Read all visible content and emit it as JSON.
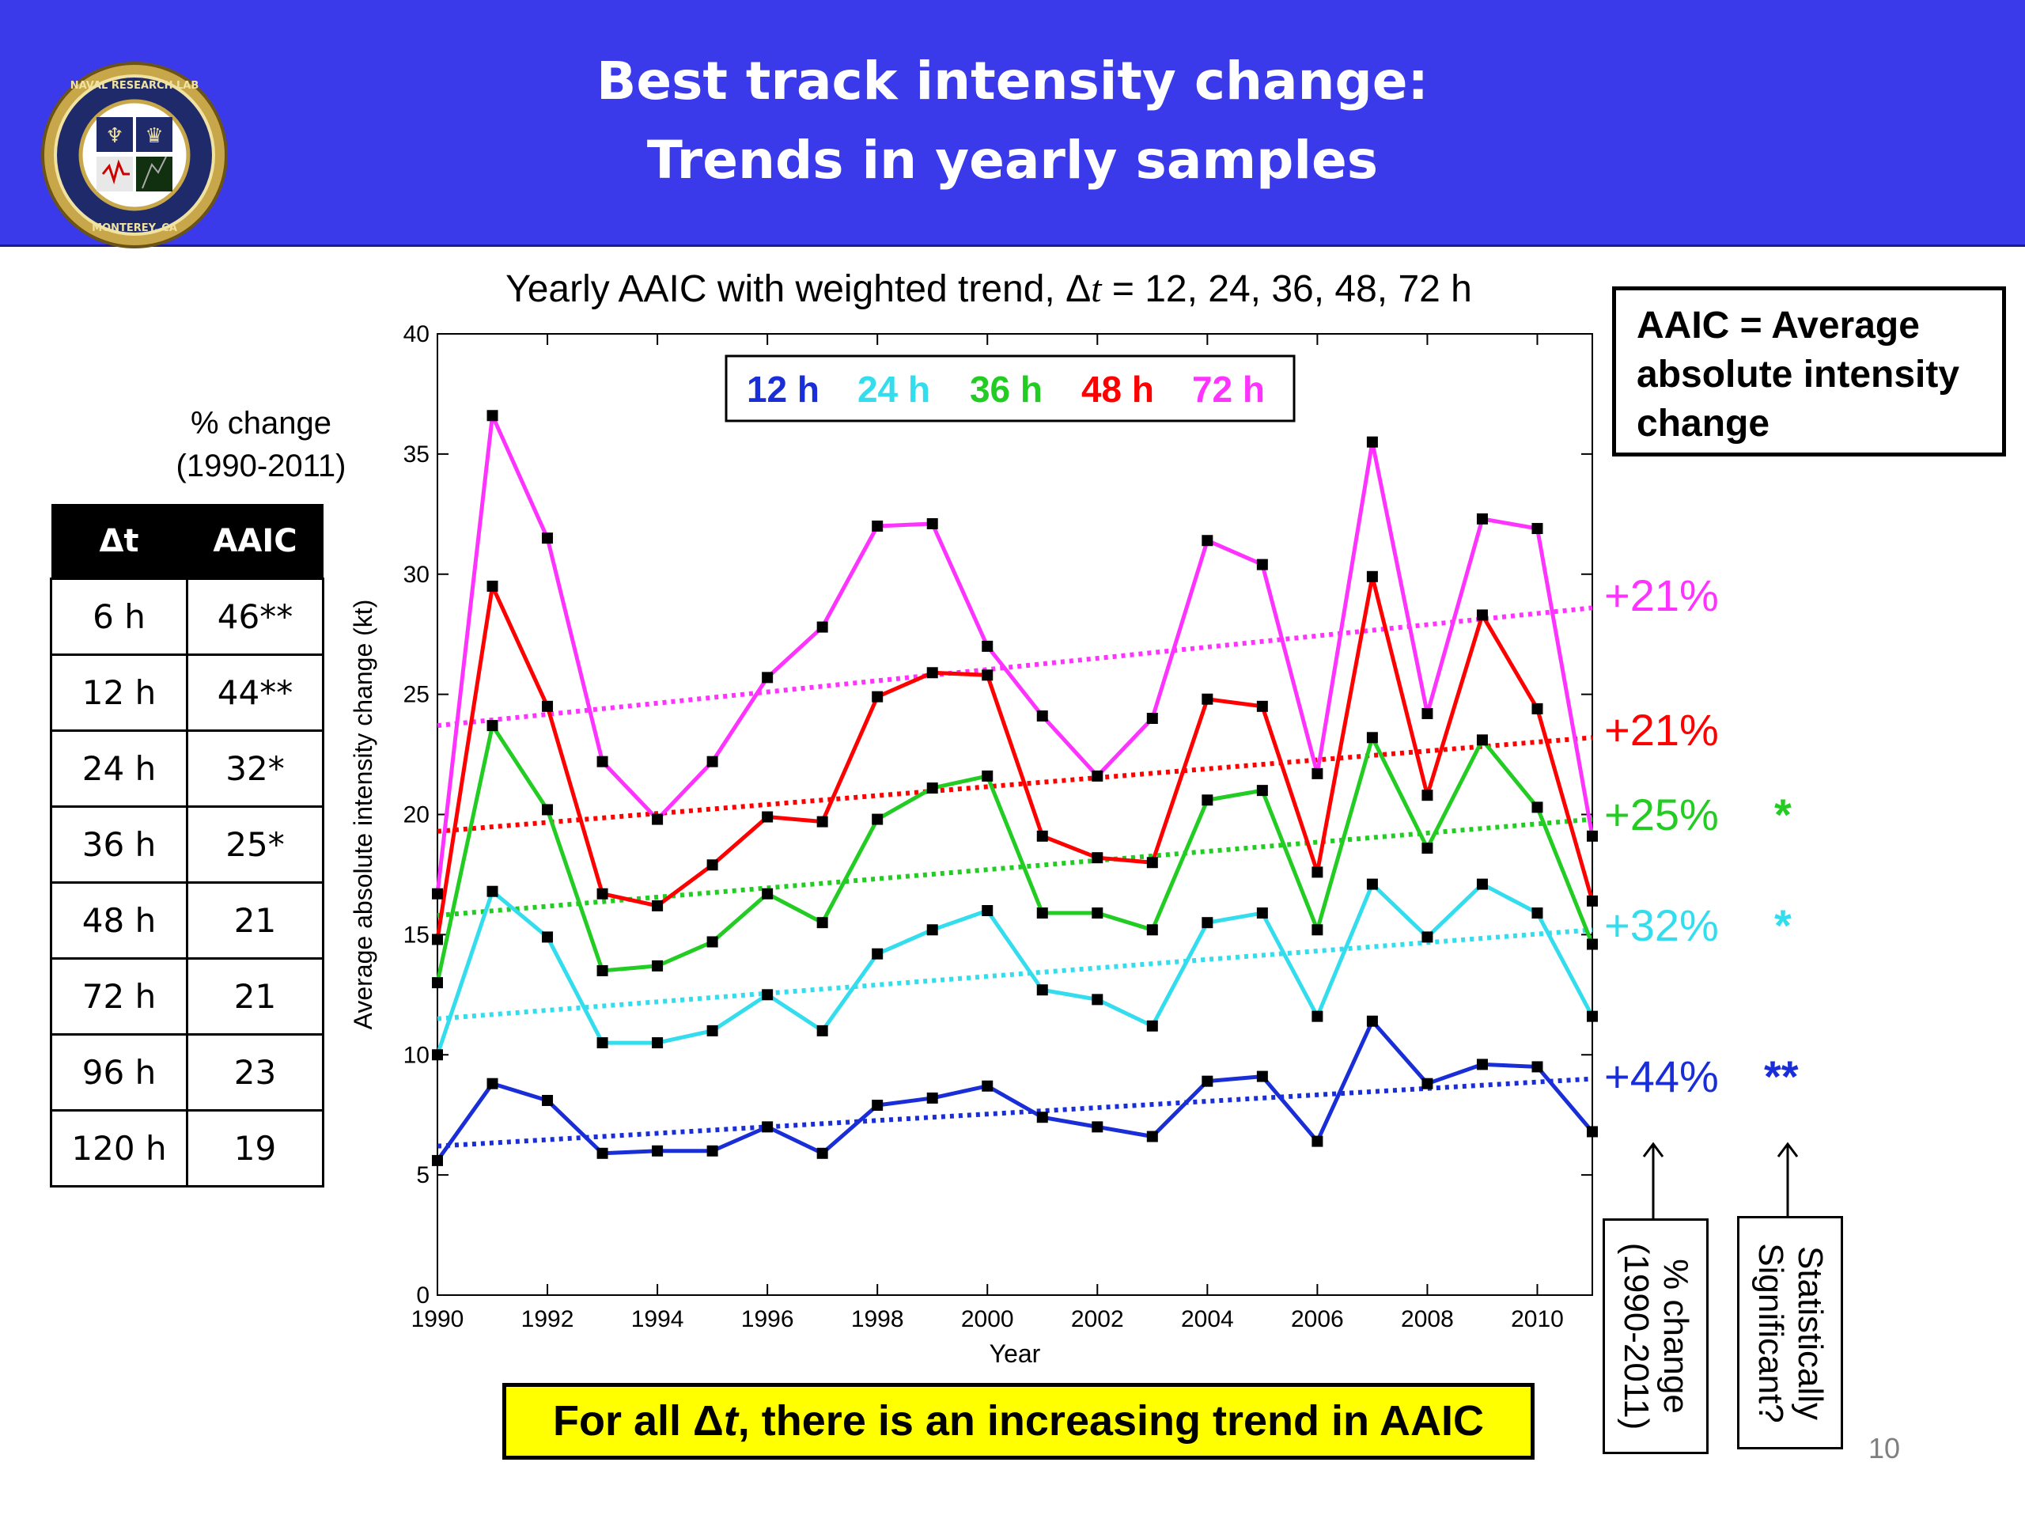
{
  "slide": {
    "title_line1": "Best track intensity change:",
    "title_line2": "Trends in yearly samples",
    "logo_text": "NAVAL RESEARCH LABORATORY · MONTEREY, CA",
    "page_number": "10",
    "header_color": "#3a3aea"
  },
  "pct_table": {
    "heading_line1": "% change",
    "heading_line2": "(1990-2011)",
    "col_dt": "Δt",
    "col_aaic": "AAIC",
    "rows": [
      {
        "dt": "6 h",
        "aaic": "46**"
      },
      {
        "dt": "12 h",
        "aaic": "44**"
      },
      {
        "dt": "24 h",
        "aaic": "32*"
      },
      {
        "dt": "36 h",
        "aaic": "25*"
      },
      {
        "dt": "48 h",
        "aaic": "21"
      },
      {
        "dt": "72 h",
        "aaic": "21"
      },
      {
        "dt": "96 h",
        "aaic": "23"
      },
      {
        "dt": "120 h",
        "aaic": "19"
      }
    ]
  },
  "aaic_box": {
    "line1": "AAIC = Average",
    "line2": "absolute intensity",
    "line3": "change"
  },
  "trend_labels": [
    {
      "series": "72 h",
      "text": "+21%",
      "sig": "",
      "color": "#ff33ff"
    },
    {
      "series": "48 h",
      "text": "+21%",
      "sig": "",
      "color": "#ff0000"
    },
    {
      "series": "36 h",
      "text": "+25%",
      "sig": "*",
      "color": "#22cc22"
    },
    {
      "series": "24 h",
      "text": "+32%",
      "sig": "*",
      "color": "#33ddee"
    },
    {
      "series": "12 h",
      "text": "+44%",
      "sig": "**",
      "color": "#1a2ed8"
    }
  ],
  "annot_pct": {
    "line1": "% change",
    "line2": "(1990-2011)"
  },
  "annot_sig": {
    "line1": "Statistically",
    "line2": "Significant?"
  },
  "conclusion": {
    "pre": "For all Δ",
    "italic": "t",
    "post": ", there is an increasing trend in AAIC"
  },
  "chart_data": {
    "type": "line",
    "title_prefix": "Yearly AAIC with weighted trend, Δ",
    "title_var": "t",
    "title_suffix": " = 12, 24, 36, 48, 72 h",
    "xlabel": "Year",
    "ylabel": "Average absolute intensity change (kt)",
    "xlim": [
      1990,
      2011
    ],
    "ylim": [
      0,
      40
    ],
    "xticks": [
      1990,
      1992,
      1994,
      1996,
      1998,
      2000,
      2002,
      2004,
      2006,
      2008,
      2010
    ],
    "yticks": [
      0,
      5,
      10,
      15,
      20,
      25,
      30,
      35,
      40
    ],
    "legend": "top-center",
    "x": [
      1990,
      1991,
      1992,
      1993,
      1994,
      1995,
      1996,
      1997,
      1998,
      1999,
      2000,
      2001,
      2002,
      2003,
      2004,
      2005,
      2006,
      2007,
      2008,
      2009,
      2010,
      2011
    ],
    "series": [
      {
        "name": "12 h",
        "color": "#1a2ed8",
        "values": [
          5.6,
          8.8,
          8.1,
          5.9,
          6.0,
          6.0,
          7.0,
          5.9,
          7.9,
          8.2,
          8.7,
          7.4,
          7.0,
          6.6,
          8.9,
          9.1,
          6.4,
          11.4,
          8.8,
          9.6,
          9.5,
          6.8
        ],
        "trend": [
          6.2,
          9.0
        ]
      },
      {
        "name": "24 h",
        "color": "#33ddee",
        "values": [
          10.0,
          16.8,
          14.9,
          10.5,
          10.5,
          11.0,
          12.5,
          11.0,
          14.2,
          15.2,
          16.0,
          12.7,
          12.3,
          11.2,
          15.5,
          15.9,
          11.6,
          17.1,
          14.9,
          17.1,
          15.9,
          11.6
        ],
        "trend": [
          11.5,
          15.2
        ]
      },
      {
        "name": "36 h",
        "color": "#22cc22",
        "values": [
          13.0,
          23.7,
          20.2,
          13.5,
          13.7,
          14.7,
          16.7,
          15.5,
          19.8,
          21.1,
          21.6,
          15.9,
          15.9,
          15.2,
          20.6,
          21.0,
          15.2,
          23.2,
          18.6,
          23.1,
          20.3,
          14.6
        ],
        "trend": [
          15.8,
          19.8
        ]
      },
      {
        "name": "48 h",
        "color": "#ff0000",
        "values": [
          14.8,
          29.5,
          24.5,
          16.7,
          16.2,
          17.9,
          19.9,
          19.7,
          24.9,
          25.9,
          25.8,
          19.1,
          18.2,
          18.0,
          24.8,
          24.5,
          17.6,
          29.9,
          20.8,
          28.3,
          24.4,
          16.4
        ],
        "trend": [
          19.3,
          23.2
        ]
      },
      {
        "name": "72 h",
        "color": "#ff33ff",
        "values": [
          16.7,
          36.6,
          31.5,
          22.2,
          19.8,
          22.2,
          25.7,
          27.8,
          32.0,
          32.1,
          27.0,
          24.1,
          21.6,
          24.0,
          31.4,
          30.4,
          21.7,
          35.5,
          24.2,
          32.3,
          31.9,
          19.1
        ],
        "trend": [
          23.7,
          28.6
        ]
      }
    ]
  }
}
